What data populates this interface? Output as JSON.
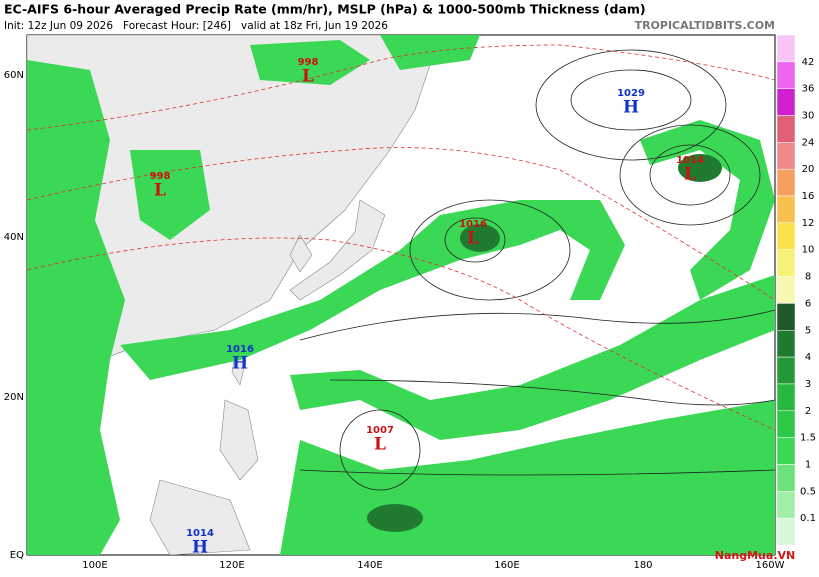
{
  "header": {
    "title": "EC-AIFS 6-hour Averaged Precip Rate (mm/hr), MSLP (hPa) & 1000-500mb Thickness (dam)",
    "subtitle": "Init: 12z Jun 09 2026   Forecast Hour: [246]   valid at 18z Fri, Jun 19 2026",
    "site": "TROPICALTIDBITS.COM"
  },
  "map": {
    "lat_labels": [
      "60N",
      "40N",
      "20N",
      "EQ"
    ],
    "lon_labels": [
      "100E",
      "120E",
      "140E",
      "160E",
      "180",
      "160W"
    ],
    "centers": [
      {
        "value": "998",
        "letter": "L",
        "color": "#cc1111"
      },
      {
        "value": "1029",
        "letter": "H",
        "color": "#1133cc"
      },
      {
        "value": "1014",
        "letter": "L",
        "color": "#cc1111"
      },
      {
        "value": "998",
        "letter": "L",
        "color": "#cc1111"
      },
      {
        "value": "1016",
        "letter": "L",
        "color": "#cc1111"
      },
      {
        "value": "1016",
        "letter": "H",
        "color": "#1133cc"
      },
      {
        "value": "1007",
        "letter": "L",
        "color": "#cc1111"
      },
      {
        "value": "1014",
        "letter": "H",
        "color": "#1133cc"
      }
    ]
  },
  "colorbar": {
    "labels": [
      "42",
      "36",
      "30",
      "24",
      "20",
      "16",
      "12",
      "10",
      "8",
      "6",
      "5",
      "4",
      "3",
      "2",
      "1.5",
      "1",
      "0.5",
      "0.1"
    ],
    "colors": [
      "#f7c6f7",
      "#ee66ee",
      "#d020d0",
      "#e0607a",
      "#f08a8a",
      "#f5a060",
      "#f8c050",
      "#fae04a",
      "#f6f27a",
      "#f8f8b0",
      "#1e5a2a",
      "#207a30",
      "#249a36",
      "#28b83e",
      "#2cc846",
      "#3ad854",
      "#6ee27a",
      "#a0eea8",
      "#d6f8d8"
    ]
  },
  "watermark": "NangMua.VN"
}
